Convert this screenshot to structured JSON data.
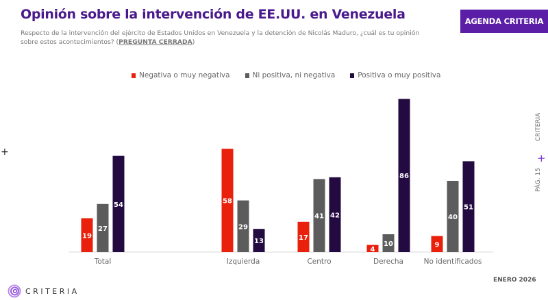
{
  "header": {
    "title": "Opinión sobre la intervención de EE.UU. en Venezuela",
    "subtitle": "Respecto de la intervención del ejército de Estados Unidos en Venezuela y la detención de Nicolás Maduro, ¿cuál es tu opinión sobre estos acontecimientos? (",
    "subtitle_tag": "PREGUNTA CERRADA",
    "subtitle_end": ")",
    "badge": "AGENDA CRITERIA"
  },
  "sidebar": {
    "brand": "CRITERIA",
    "page": "PÁG. 15",
    "plus": "+"
  },
  "footer": {
    "logo_text": "CRITERIA",
    "date": "ENERO 2026"
  },
  "left_marker": "+",
  "chart_data": {
    "type": "bar",
    "title": "Opinión sobre la intervención de EE.UU. en Venezuela",
    "xlabel": "",
    "ylabel": "",
    "ylim": [
      0,
      90
    ],
    "grid": false,
    "legend_position": "top",
    "categories": [
      "Total",
      "Izquierda",
      "Centro",
      "Derecha",
      "No identificados"
    ],
    "series": [
      {
        "name": "Negativa o muy negativa",
        "color": "#e8200c",
        "values": [
          19,
          58,
          17,
          4,
          9
        ]
      },
      {
        "name": "Ni positiva, ni negativa",
        "color": "#5c5c5c",
        "values": [
          27,
          29,
          41,
          10,
          40
        ]
      },
      {
        "name": "Positiva o muy positiva",
        "color": "#230a40",
        "values": [
          54,
          13,
          42,
          86,
          51
        ]
      }
    ]
  }
}
